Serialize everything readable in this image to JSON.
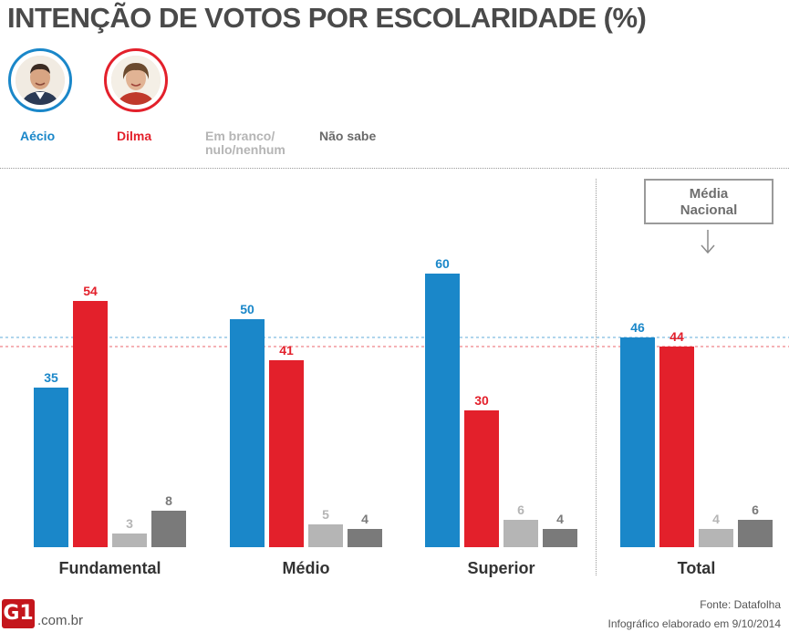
{
  "title": "INTENÇÃO DE VOTOS POR ESCOLARIDADE (%)",
  "candidates": {
    "aecio": {
      "label": "Aécio"
    },
    "dilma": {
      "label": "Dilma"
    }
  },
  "legend": {
    "branco_line1": "Em branco/",
    "branco_line2": "nulo/nenhum",
    "nao_sabe": "Não sabe"
  },
  "media": {
    "line1": "Média",
    "line2": "Nacional"
  },
  "footer": {
    "fonte": "Fonte: Datafolha",
    "info": "Infográfico elaborado em 9/10/2014",
    "logo": "G1",
    "domain": ".com.br"
  },
  "colors": {
    "aecio": "#1a87c9",
    "dilma": "#e3202b",
    "branco": "#b5b5b5",
    "nao_sabe": "#7a7a7a",
    "category_label": "#333333"
  },
  "chart_data": {
    "type": "bar",
    "categories": [
      "Fundamental",
      "Médio",
      "Superior",
      "Total"
    ],
    "series": [
      {
        "name": "Aécio",
        "values": [
          35,
          50,
          60,
          46
        ]
      },
      {
        "name": "Dilma",
        "values": [
          54,
          41,
          30,
          44
        ]
      },
      {
        "name": "Em branco/nulo/nenhum",
        "values": [
          3,
          5,
          6,
          4
        ]
      },
      {
        "name": "Não sabe",
        "values": [
          8,
          4,
          4,
          6
        ]
      }
    ],
    "reference_lines": [
      {
        "series": "Aécio",
        "value": 46
      },
      {
        "series": "Dilma",
        "value": 44
      }
    ],
    "ylim": [
      0,
      60
    ],
    "grid": false,
    "legend": "top-left"
  }
}
